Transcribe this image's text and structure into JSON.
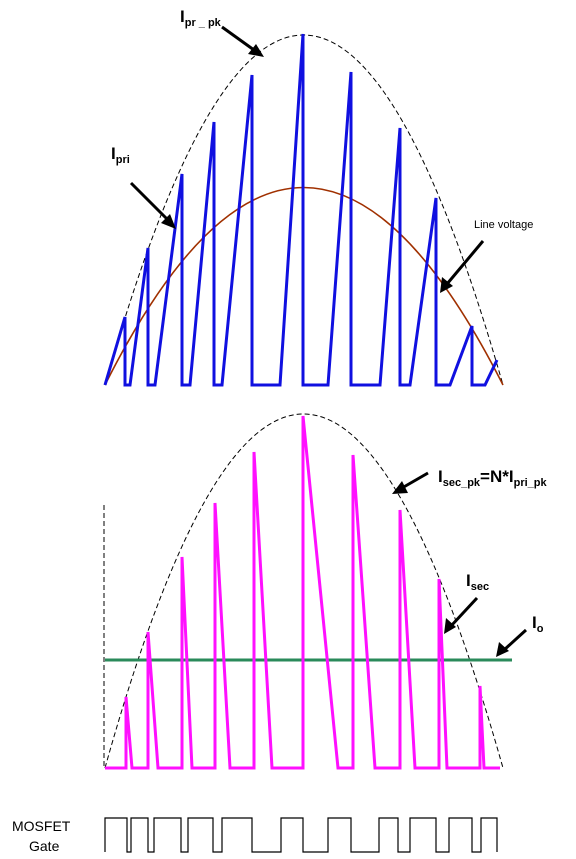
{
  "labels": {
    "ipr_pk": {
      "main": "I",
      "sub": "pr _ pk"
    },
    "ipri": {
      "main": "I",
      "sub": "pri"
    },
    "line_voltage": "Line voltage",
    "isec_pk": {
      "main": "I",
      "sub1": "sec_pk",
      "mid": "=N*I",
      "sub2": "pri_pk"
    },
    "isec": {
      "main": "I",
      "sub": "sec"
    },
    "io": {
      "main": "I",
      "sub": "o"
    },
    "mosfet_line1": "MOSFET",
    "mosfet_line2": "Gate"
  },
  "colors": {
    "primary_current": "#1010e0",
    "line_voltage": "#a03000",
    "secondary_current": "#ff10ff",
    "output_current": "#2a8a5a",
    "envelope": "#000000",
    "gate": "#000000",
    "arrow": "#000000"
  }
}
